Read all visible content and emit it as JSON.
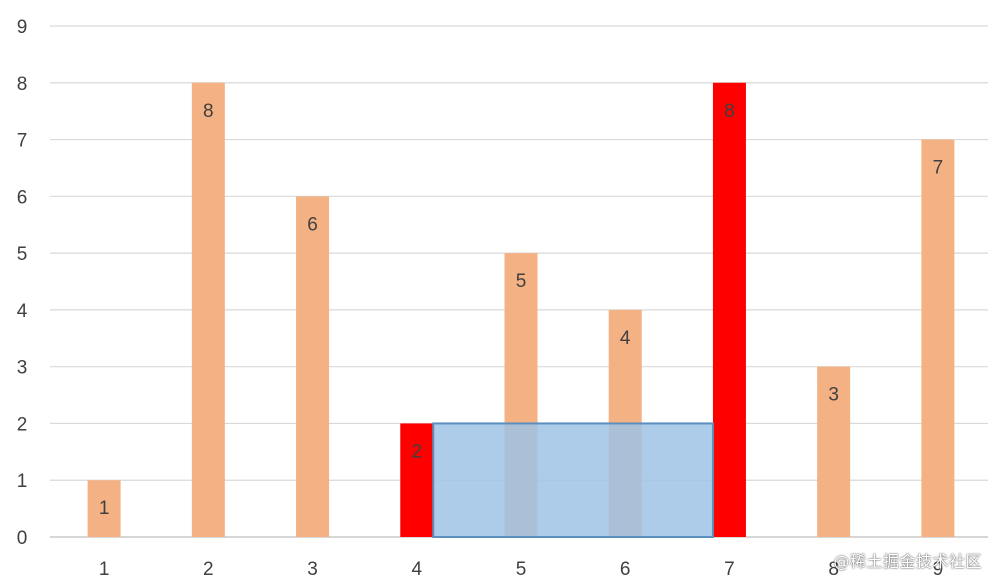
{
  "chart_data": {
    "type": "bar",
    "categories": [
      "1",
      "2",
      "3",
      "4",
      "5",
      "6",
      "7",
      "8",
      "9"
    ],
    "values": [
      1,
      8,
      6,
      2,
      5,
      4,
      8,
      3,
      7
    ],
    "data_labels": [
      "1",
      "8",
      "6",
      "2",
      "5",
      "4",
      "8",
      "3",
      "7"
    ],
    "title": "",
    "xlabel": "",
    "ylabel": "",
    "ylim": [
      0,
      9
    ],
    "yticks": [
      0,
      1,
      2,
      3,
      4,
      5,
      6,
      7,
      8,
      9
    ],
    "grid": true,
    "highlighted_categories": [
      "4",
      "7"
    ],
    "overlay_region": {
      "x_from": "4",
      "x_to": "7",
      "y_from": 0,
      "y_to": 2
    }
  },
  "colors": {
    "bar": "#f4b183",
    "highlight": "#ff0000",
    "overlay_fill": "#9dc3e6",
    "overlay_stroke": "#5b8fbf"
  },
  "watermark": "@稀土掘金技术社区"
}
